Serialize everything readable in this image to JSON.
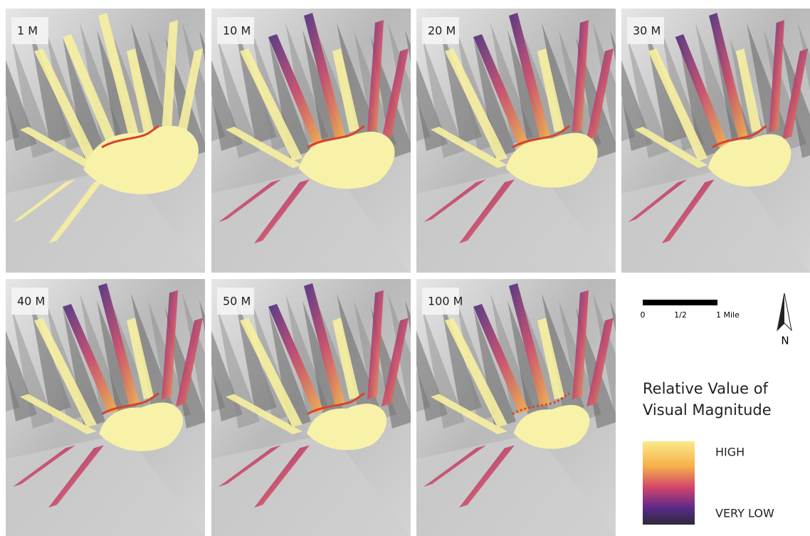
{
  "panels": [
    {
      "label": "1 M"
    },
    {
      "label": "10 M"
    },
    {
      "label": "20 M"
    },
    {
      "label": "30 M"
    },
    {
      "label": "40 M"
    },
    {
      "label": "50 M"
    },
    {
      "label": "100 M"
    }
  ],
  "scale_bar": {
    "ticks": [
      "0",
      "1/2",
      "1 Mile"
    ]
  },
  "north_arrow": {
    "label": "N"
  },
  "legend": {
    "title": [
      "Relative Value of",
      "Visual Magnitude"
    ],
    "high": "HIGH",
    "low": "VERY LOW"
  }
}
